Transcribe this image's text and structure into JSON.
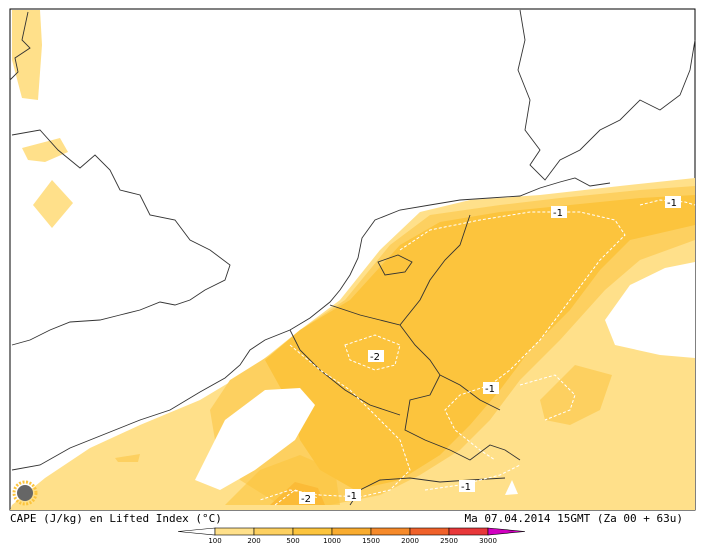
{
  "caption": {
    "left": "CAPE (J/kg) en Lifted Index (°C)",
    "right": "Ma 07.04.2014 15GMT (Za 00 + 63u)"
  },
  "legend": {
    "ticks": [
      "100",
      "200",
      "500",
      "1000",
      "1500",
      "2000",
      "2500",
      "3000"
    ],
    "colors": [
      "#ffe08a",
      "#fdd060",
      "#fcc43d",
      "#f9ac2f",
      "#f68a2a",
      "#f0612a",
      "#e8383a",
      "#e02080",
      "#d100c0"
    ]
  },
  "contour_labels": [
    "-1",
    "-1",
    "-2",
    "-1",
    "-1",
    "-1",
    "-2"
  ],
  "colors": {
    "cape_100": "#ffe08a",
    "cape_200": "#fdd060",
    "cape_500": "#fcc43d",
    "cape_1000": "#f9ac2f",
    "coast": "#333333",
    "contour": "#ffffff"
  },
  "icons": [
    "logo-sun-icon"
  ]
}
